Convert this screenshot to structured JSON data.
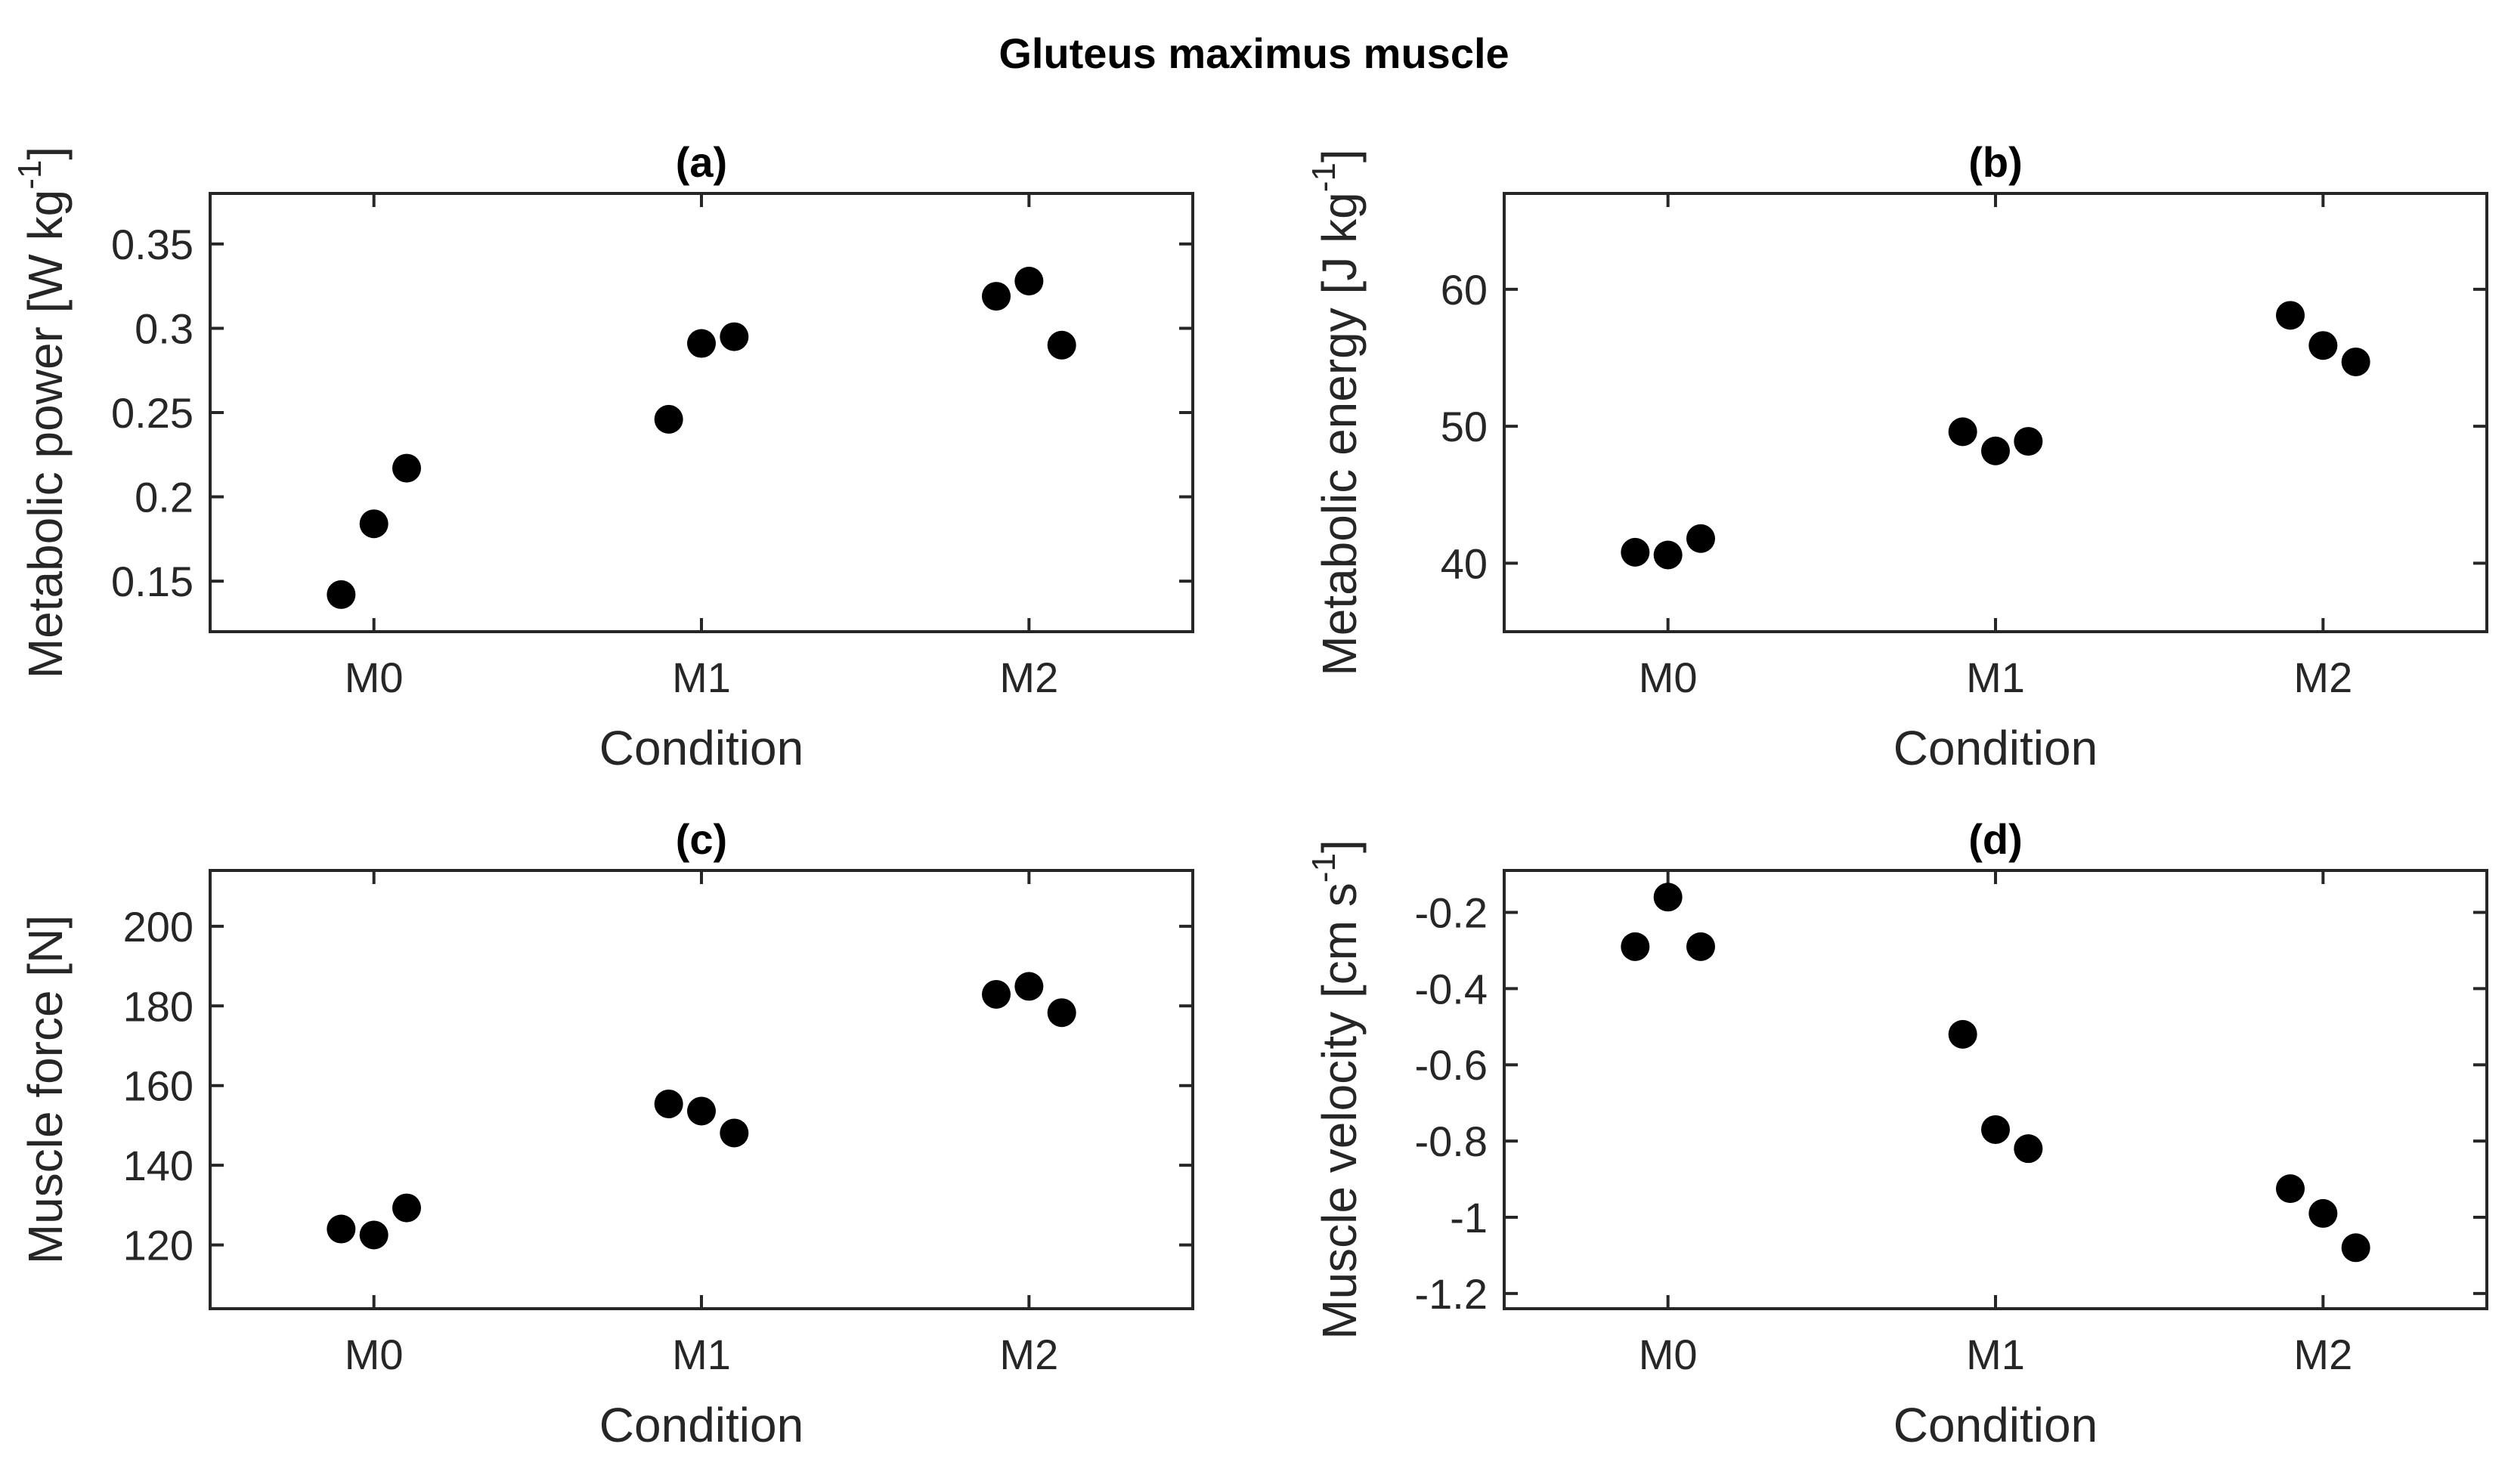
{
  "chart_data": {
    "title": "Gluteus maximus muscle",
    "type": "scatter",
    "panels": [
      {
        "id": "a",
        "title": "(a)",
        "xlabel": "Condition",
        "ylabel_main": "Metabolic power [W kg",
        "ylabel_sup": "-1",
        "ylabel_close": "]",
        "categories": [
          "M0",
          "M1",
          "M2"
        ],
        "ylim": [
          0.12,
          0.38
        ],
        "yticks": [
          0.15,
          0.2,
          0.25,
          0.3,
          0.35
        ],
        "ytick_labels": [
          "0.15",
          "0.2",
          "0.25",
          "0.3",
          "0.35"
        ],
        "points": [
          {
            "x": -0.1,
            "y": 0.142
          },
          {
            "x": 0.0,
            "y": 0.184
          },
          {
            "x": 0.1,
            "y": 0.217
          },
          {
            "x": 0.9,
            "y": 0.246
          },
          {
            "x": 1.0,
            "y": 0.291
          },
          {
            "x": 1.1,
            "y": 0.295
          },
          {
            "x": 1.9,
            "y": 0.319
          },
          {
            "x": 2.0,
            "y": 0.328
          },
          {
            "x": 2.1,
            "y": 0.29
          }
        ]
      },
      {
        "id": "b",
        "title": "(b)",
        "xlabel": "Condition",
        "ylabel_main": "Metabolic energy [J kg",
        "ylabel_sup": "-1",
        "ylabel_close": "]",
        "categories": [
          "M0",
          "M1",
          "M2"
        ],
        "ylim": [
          35,
          67
        ],
        "yticks": [
          40,
          50,
          60
        ],
        "ytick_labels": [
          "40",
          "50",
          "60"
        ],
        "points": [
          {
            "x": -0.1,
            "y": 40.8
          },
          {
            "x": 0.0,
            "y": 40.6
          },
          {
            "x": 0.1,
            "y": 41.8
          },
          {
            "x": 0.9,
            "y": 49.6
          },
          {
            "x": 1.0,
            "y": 48.2
          },
          {
            "x": 1.1,
            "y": 48.9
          },
          {
            "x": 1.9,
            "y": 58.1
          },
          {
            "x": 2.0,
            "y": 55.9
          },
          {
            "x": 2.1,
            "y": 54.7
          }
        ]
      },
      {
        "id": "c",
        "title": "(c)",
        "xlabel": "Condition",
        "ylabel_main": "Muscle force [N]",
        "ylabel_sup": "",
        "ylabel_close": "",
        "categories": [
          "M0",
          "M1",
          "M2"
        ],
        "ylim": [
          104,
          214
        ],
        "yticks": [
          120,
          140,
          160,
          180,
          200
        ],
        "ytick_labels": [
          "120",
          "140",
          "160",
          "180",
          "200"
        ],
        "points": [
          {
            "x": -0.1,
            "y": 124
          },
          {
            "x": 0.0,
            "y": 122.5
          },
          {
            "x": 0.1,
            "y": 129.3
          },
          {
            "x": 0.9,
            "y": 155.4
          },
          {
            "x": 1.0,
            "y": 153.6
          },
          {
            "x": 1.1,
            "y": 148.1
          },
          {
            "x": 1.9,
            "y": 182.9
          },
          {
            "x": 2.0,
            "y": 184.9
          },
          {
            "x": 2.1,
            "y": 178.3
          }
        ]
      },
      {
        "id": "d",
        "title": "(d)",
        "xlabel": "Condition",
        "ylabel_main": "Muscle velocity [cm s",
        "ylabel_sup": "-1",
        "ylabel_close": "]",
        "categories": [
          "M0",
          "M1",
          "M2"
        ],
        "ylim": [
          -1.24,
          -0.09
        ],
        "yticks": [
          -1.2,
          -1,
          -0.8,
          -0.6,
          -0.4,
          -0.2
        ],
        "ytick_labels": [
          "-1.2",
          "-1",
          "-0.8",
          "-0.6",
          "-0.4",
          "-0.2"
        ],
        "points": [
          {
            "x": -0.1,
            "y": -0.29
          },
          {
            "x": 0.0,
            "y": -0.16
          },
          {
            "x": 0.1,
            "y": -0.29
          },
          {
            "x": 0.9,
            "y": -0.52
          },
          {
            "x": 1.0,
            "y": -0.77
          },
          {
            "x": 1.1,
            "y": -0.82
          },
          {
            "x": 1.9,
            "y": -0.925
          },
          {
            "x": 2.0,
            "y": -0.99
          },
          {
            "x": 2.1,
            "y": -1.08
          }
        ]
      }
    ]
  }
}
